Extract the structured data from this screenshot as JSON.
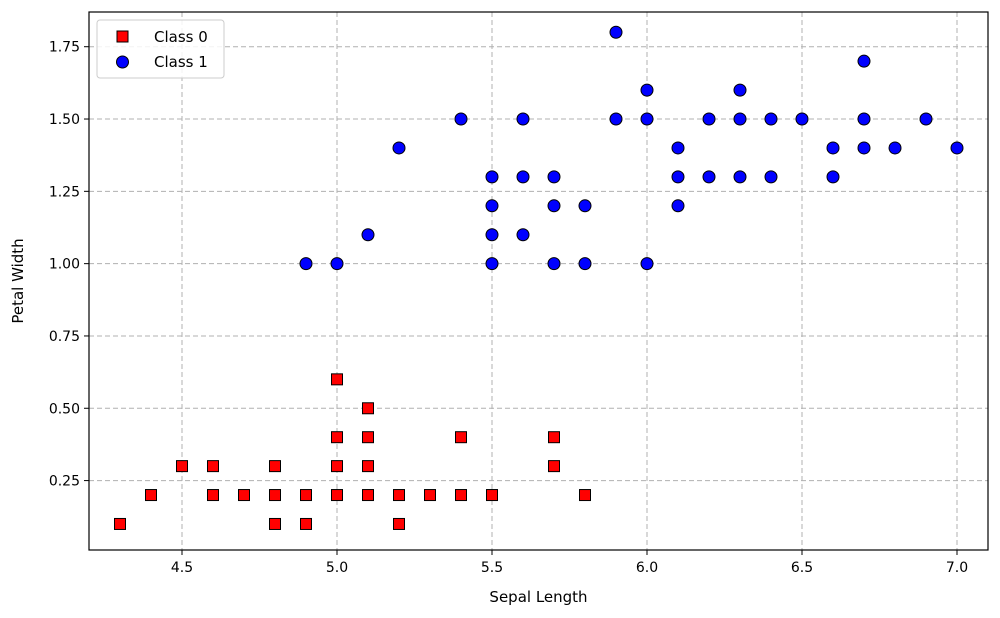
{
  "chart_data": {
    "type": "scatter",
    "title": "",
    "xlabel": "Sepal Length",
    "ylabel": "Petal Width",
    "xlim": [
      4.2,
      7.1
    ],
    "ylim": [
      0.01,
      1.87
    ],
    "xticks": [
      4.5,
      5.0,
      5.5,
      6.0,
      6.5,
      7.0
    ],
    "xtick_labels": [
      "4.5",
      "5.0",
      "5.5",
      "6.0",
      "6.5",
      "7.0"
    ],
    "yticks": [
      0.25,
      0.5,
      0.75,
      1.0,
      1.25,
      1.5,
      1.75
    ],
    "ytick_labels": [
      "0.25",
      "0.50",
      "0.75",
      "1.00",
      "1.25",
      "1.50",
      "1.75"
    ],
    "grid": true,
    "legend": {
      "placement": "top-left",
      "entries": [
        "Class 0",
        "Class 1"
      ]
    },
    "series": [
      {
        "name": "Class 0",
        "marker": "square",
        "color": "#ff0000",
        "edgecolor": "#000000",
        "points": [
          [
            4.3,
            0.1
          ],
          [
            4.4,
            0.2
          ],
          [
            4.5,
            0.3
          ],
          [
            4.6,
            0.3
          ],
          [
            4.6,
            0.2
          ],
          [
            4.7,
            0.2
          ],
          [
            4.8,
            0.3
          ],
          [
            4.8,
            0.2
          ],
          [
            4.8,
            0.1
          ],
          [
            4.9,
            0.2
          ],
          [
            4.9,
            0.1
          ],
          [
            5.0,
            0.6
          ],
          [
            5.0,
            0.4
          ],
          [
            5.0,
            0.3
          ],
          [
            5.0,
            0.2
          ],
          [
            5.1,
            0.5
          ],
          [
            5.1,
            0.4
          ],
          [
            5.1,
            0.3
          ],
          [
            5.1,
            0.2
          ],
          [
            5.2,
            0.2
          ],
          [
            5.2,
            0.1
          ],
          [
            5.3,
            0.2
          ],
          [
            5.4,
            0.4
          ],
          [
            5.4,
            0.2
          ],
          [
            5.5,
            0.2
          ],
          [
            5.7,
            0.4
          ],
          [
            5.7,
            0.3
          ],
          [
            5.8,
            0.2
          ]
        ]
      },
      {
        "name": "Class 1",
        "marker": "circle",
        "color": "#0000ff",
        "edgecolor": "#000000",
        "points": [
          [
            4.9,
            1.0
          ],
          [
            5.0,
            1.0
          ],
          [
            5.1,
            1.1
          ],
          [
            5.2,
            1.4
          ],
          [
            5.4,
            1.5
          ],
          [
            5.5,
            1.3
          ],
          [
            5.5,
            1.2
          ],
          [
            5.5,
            1.1
          ],
          [
            5.5,
            1.0
          ],
          [
            5.6,
            1.5
          ],
          [
            5.6,
            1.3
          ],
          [
            5.6,
            1.1
          ],
          [
            5.7,
            1.3
          ],
          [
            5.7,
            1.2
          ],
          [
            5.7,
            1.0
          ],
          [
            5.8,
            1.2
          ],
          [
            5.8,
            1.0
          ],
          [
            5.9,
            1.8
          ],
          [
            5.9,
            1.5
          ],
          [
            6.0,
            1.6
          ],
          [
            6.0,
            1.5
          ],
          [
            6.0,
            1.0
          ],
          [
            6.1,
            1.4
          ],
          [
            6.1,
            1.3
          ],
          [
            6.1,
            1.2
          ],
          [
            6.2,
            1.5
          ],
          [
            6.2,
            1.3
          ],
          [
            6.3,
            1.6
          ],
          [
            6.3,
            1.5
          ],
          [
            6.3,
            1.3
          ],
          [
            6.4,
            1.5
          ],
          [
            6.4,
            1.3
          ],
          [
            6.5,
            1.5
          ],
          [
            6.6,
            1.4
          ],
          [
            6.6,
            1.3
          ],
          [
            6.7,
            1.7
          ],
          [
            6.7,
            1.5
          ],
          [
            6.7,
            1.4
          ],
          [
            6.8,
            1.4
          ],
          [
            6.9,
            1.5
          ],
          [
            7.0,
            1.4
          ]
        ]
      }
    ]
  }
}
